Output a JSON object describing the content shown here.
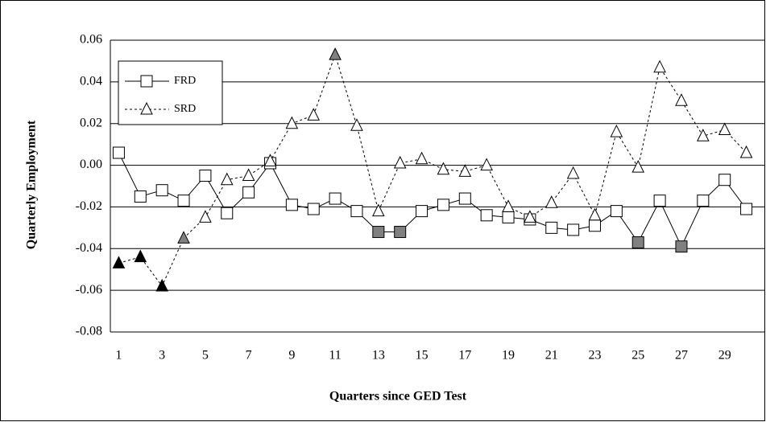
{
  "chart_data": {
    "type": "line",
    "x_label": "Quarters since GED Test",
    "y_label": "Quarterly Employment",
    "x": [
      1,
      2,
      3,
      4,
      5,
      6,
      7,
      8,
      9,
      10,
      11,
      12,
      13,
      14,
      15,
      16,
      17,
      18,
      19,
      20,
      21,
      22,
      23,
      24,
      25,
      26,
      27,
      28,
      29,
      30
    ],
    "xlim": [
      0.5,
      30.5
    ],
    "xticks": [
      1,
      3,
      5,
      7,
      9,
      11,
      13,
      15,
      17,
      19,
      21,
      23,
      25,
      27,
      29
    ],
    "ylim": [
      -0.08,
      0.06
    ],
    "yticks": [
      0.06,
      0.04,
      0.02,
      {
        "value": 0,
        "label": "0.00"
      },
      -0.02,
      -0.04,
      -0.06,
      -0.08
    ],
    "grid": true,
    "legend": "upper left",
    "series": [
      {
        "name": "FRD",
        "color": "#000000",
        "marker": "square",
        "line_style": "solid",
        "values": [
          0.006,
          -0.015,
          -0.012,
          -0.017,
          -0.005,
          -0.023,
          -0.013,
          0.001,
          -0.019,
          -0.021,
          -0.016,
          -0.022,
          -0.032,
          -0.032,
          -0.022,
          -0.019,
          -0.016,
          -0.024,
          -0.025,
          -0.026,
          -0.03,
          -0.031,
          -0.029,
          -0.022,
          -0.037,
          -0.017,
          -0.039,
          -0.017,
          -0.007,
          -0.021
        ],
        "marker_fills": [
          "#ffffff",
          "#ffffff",
          "#ffffff",
          "#ffffff",
          "#ffffff",
          "#ffffff",
          "#ffffff",
          "#ffffff",
          "#ffffff",
          "#ffffff",
          "#ffffff",
          "#ffffff",
          "#808080",
          "#808080",
          "#ffffff",
          "#ffffff",
          "#ffffff",
          "#ffffff",
          "#ffffff",
          "#ffffff",
          "#ffffff",
          "#ffffff",
          "#ffffff",
          "#ffffff",
          "#808080",
          "#ffffff",
          "#808080",
          "#ffffff",
          "#ffffff",
          "#ffffff"
        ]
      },
      {
        "name": "SRD",
        "color": "#000000",
        "marker": "triangle",
        "line_style": "dashed",
        "values": [
          -0.047,
          -0.044,
          -0.058,
          -0.035,
          -0.025,
          -0.007,
          -0.005,
          0.002,
          0.02,
          0.024,
          0.053,
          0.019,
          -0.022,
          0.001,
          0.003,
          -0.002,
          -0.003,
          0,
          -0.02,
          -0.025,
          -0.018,
          -0.004,
          -0.024,
          0.016,
          -0.001,
          0.047,
          0.031,
          0.014,
          0.017,
          0.006
        ],
        "marker_fills": [
          "#000000",
          "#000000",
          "#000000",
          "#808080",
          "#ffffff",
          "#ffffff",
          "#ffffff",
          "#ffffff",
          "#ffffff",
          "#ffffff",
          "#808080",
          "#ffffff",
          "#ffffff",
          "#ffffff",
          "#ffffff",
          "#ffffff",
          "#ffffff",
          "#ffffff",
          "#ffffff",
          "#ffffff",
          "#ffffff",
          "#ffffff",
          "#ffffff",
          "#ffffff",
          "#ffffff",
          "#ffffff",
          "#ffffff",
          "#ffffff",
          "#ffffff",
          "#ffffff"
        ]
      }
    ]
  }
}
